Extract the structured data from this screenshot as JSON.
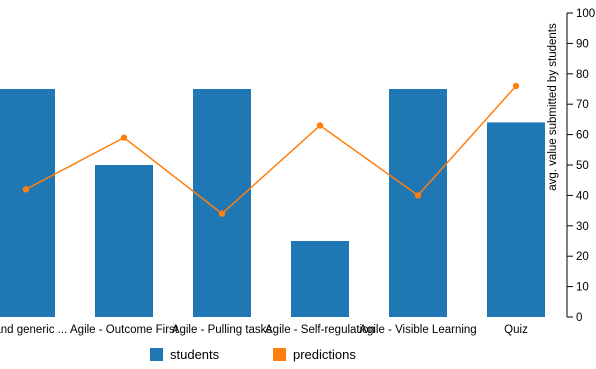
{
  "chart_data": {
    "type": "bar",
    "categories": [
      "g and generic ...",
      "Agile - Outcome First",
      "Agile - Pulling tasks",
      "Agile - Self-regulation",
      "Agile - Visible Learning",
      "Quiz"
    ],
    "series": [
      {
        "name": "students",
        "type": "bar",
        "color": "#1f77b4",
        "values": [
          75,
          50,
          75,
          25,
          75,
          64
        ]
      },
      {
        "name": "predictions",
        "type": "line",
        "color": "#ff7f0e",
        "values": [
          42,
          59,
          34,
          63,
          40,
          76
        ]
      }
    ],
    "xlabel": "",
    "ylabel": "avg. value submitted by students",
    "ylim": [
      0,
      100
    ],
    "yticks": [
      0,
      10,
      20,
      30,
      40,
      50,
      60,
      70,
      80,
      90,
      100
    ],
    "yaxis_side": "right",
    "legend": {
      "position": "bottom",
      "entries": [
        "students",
        "predictions"
      ]
    },
    "grid": false
  }
}
